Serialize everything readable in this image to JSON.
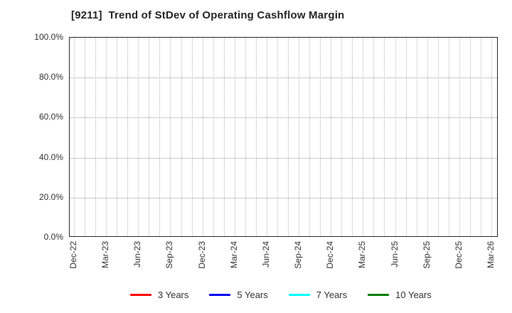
{
  "header": {
    "title": "[9211]  Trend of StDev of Operating Cashflow Margin"
  },
  "chart_data": {
    "type": "line",
    "title": "[9211]  Trend of StDev of Operating Cashflow Margin",
    "categories": [
      "Dec-22",
      "Mar-23",
      "Jun-23",
      "Sep-23",
      "Dec-23",
      "Mar-24",
      "Jun-24",
      "Sep-24",
      "Dec-24",
      "Mar-25",
      "Jun-25",
      "Sep-25",
      "Dec-25",
      "Mar-26"
    ],
    "x_minor_unit": "month",
    "series": [
      {
        "name": "3 Years",
        "color": "#ff0000",
        "values": []
      },
      {
        "name": "5 Years",
        "color": "#0000ee",
        "values": []
      },
      {
        "name": "7 Years",
        "color": "#00ffff",
        "values": []
      },
      {
        "name": "10 Years",
        "color": "#008000",
        "values": []
      }
    ],
    "xlabel": "",
    "ylabel": "",
    "ylim": [
      0,
      100
    ],
    "yticks": [
      0,
      20,
      40,
      60,
      80,
      100
    ],
    "ytick_labels": [
      "0.0%",
      "20.0%",
      "40.0%",
      "60.0%",
      "80.0%",
      "100.0%"
    ],
    "grid": true,
    "grid_style": "dotted",
    "legend_position": "bottom",
    "plot_empty": true,
    "colors": {
      "spine": "#2b2b2b",
      "grid_vertical": "#b8b8b8",
      "grid_horizontal": "#999999",
      "text": "#333333",
      "background": "#ffffff"
    }
  }
}
